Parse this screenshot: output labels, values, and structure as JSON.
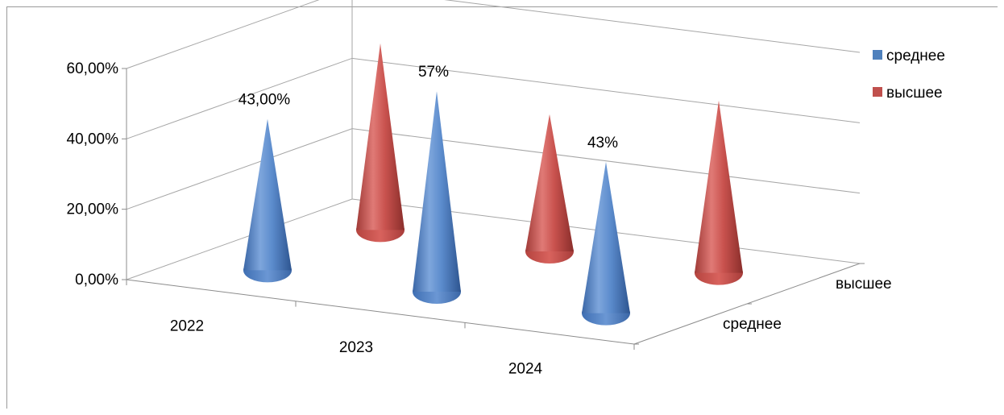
{
  "chart_data": {
    "type": "bar",
    "subtype": "3d-cone",
    "title": "",
    "categories": [
      "2022",
      "2023",
      "2024"
    ],
    "series": [
      {
        "name": "среднее",
        "color": "#4f81bd",
        "values": [
          0.43,
          0.57,
          0.43
        ]
      },
      {
        "name": "высшее",
        "color": "#c0504d",
        "values": [
          0.53,
          0.39,
          0.49
        ]
      }
    ],
    "data_labels": [
      {
        "series": 0,
        "index": 0,
        "text": "43,00%"
      },
      {
        "series": 0,
        "index": 1,
        "text": "57%"
      },
      {
        "series": 0,
        "index": 2,
        "text": "43%"
      }
    ],
    "y_ticks": [
      "0,00%",
      "20,00%",
      "40,00%",
      "60,00%"
    ],
    "ylim": [
      0,
      0.6
    ],
    "depth_labels": [
      "среднее",
      "высшее"
    ],
    "grid": true,
    "legend": {
      "position": "right",
      "entries": [
        {
          "label": "среднее",
          "color": "#4f81bd"
        },
        {
          "label": "высшее",
          "color": "#c0504d"
        }
      ]
    }
  }
}
